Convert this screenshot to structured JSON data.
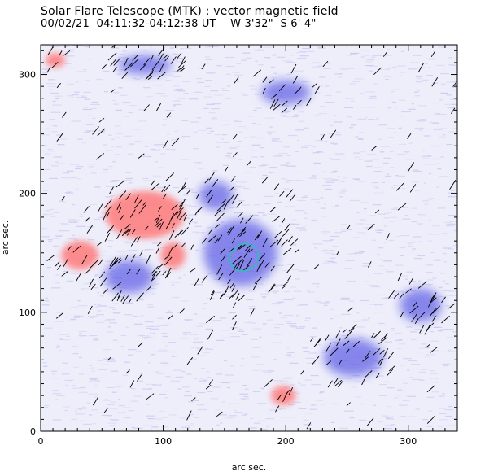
{
  "header": {
    "title": "Solar Flare Telescope (MTK) : vector magnetic field",
    "date": "00/02/21",
    "time_range": "04:11:32-04:12:38 UT",
    "position": "W 3'32\"  S 6' 4\""
  },
  "chart_data": {
    "type": "heatmap",
    "title": "Solar Flare Telescope (MTK) : vector magnetic field",
    "xlabel": "arc sec.",
    "ylabel": "arc sec.",
    "xlim": [
      0,
      340
    ],
    "ylim": [
      0,
      325
    ],
    "x_ticks": [
      0,
      100,
      200,
      300
    ],
    "y_ticks": [
      0,
      100,
      200,
      300
    ],
    "colors": {
      "positive_polarity": "#ff7a7a",
      "negative_polarity": "#5a5ae6",
      "background_noise": "#c8c8f0",
      "contour": "#20c8b0",
      "vectors": "#000000"
    },
    "features": [
      {
        "polarity": "positive",
        "x": 85,
        "y": 182,
        "rx": 32,
        "ry": 20
      },
      {
        "polarity": "positive",
        "x": 32,
        "y": 148,
        "rx": 15,
        "ry": 12
      },
      {
        "polarity": "positive",
        "x": 108,
        "y": 148,
        "rx": 10,
        "ry": 11
      },
      {
        "polarity": "positive",
        "x": 198,
        "y": 30,
        "rx": 10,
        "ry": 8
      },
      {
        "polarity": "positive",
        "x": 12,
        "y": 312,
        "rx": 8,
        "ry": 6
      },
      {
        "polarity": "negative",
        "x": 163,
        "y": 150,
        "rx": 30,
        "ry": 28
      },
      {
        "polarity": "negative",
        "x": 143,
        "y": 198,
        "rx": 14,
        "ry": 12
      },
      {
        "polarity": "negative",
        "x": 310,
        "y": 106,
        "rx": 17,
        "ry": 14
      },
      {
        "polarity": "negative",
        "x": 255,
        "y": 62,
        "rx": 24,
        "ry": 16
      },
      {
        "polarity": "negative",
        "x": 200,
        "y": 285,
        "rx": 20,
        "ry": 10
      },
      {
        "polarity": "negative",
        "x": 85,
        "y": 308,
        "rx": 22,
        "ry": 8
      },
      {
        "polarity": "negative",
        "x": 72,
        "y": 130,
        "rx": 20,
        "ry": 14
      }
    ],
    "contour_level": {
      "x": 166,
      "y": 146,
      "rx": 12,
      "ry": 11,
      "angle": -35
    }
  }
}
